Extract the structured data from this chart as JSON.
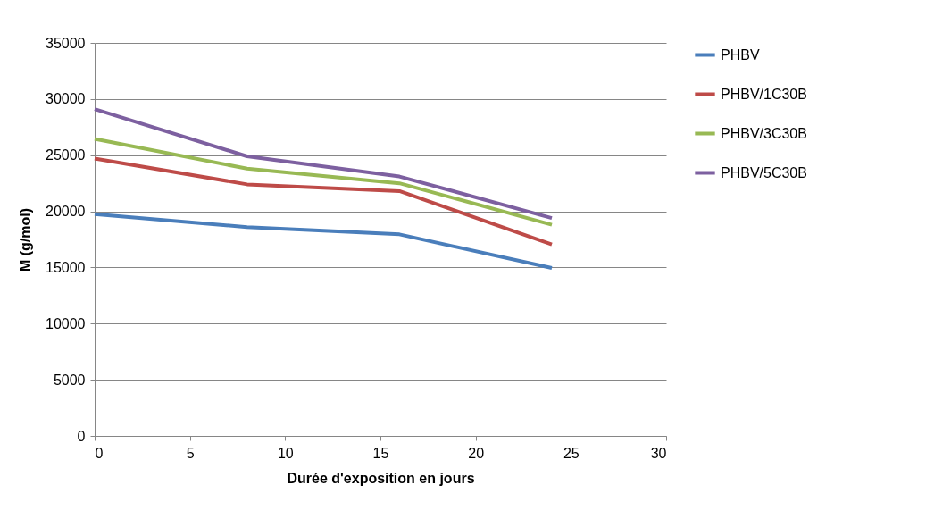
{
  "chart_data": {
    "type": "line",
    "xlabel": "Durée d'exposition en jours",
    "ylabel": "M (g/mol)",
    "x": [
      0,
      8,
      16,
      24
    ],
    "series": [
      {
        "name": "PHBV",
        "color": "#4a7ebb",
        "values": [
          19750,
          18600,
          17950,
          14950
        ]
      },
      {
        "name": "PHBV/1C30B",
        "color": "#be4b48",
        "values": [
          24700,
          22400,
          21800,
          17050
        ]
      },
      {
        "name": "PHBV/3C30B",
        "color": "#98b954",
        "values": [
          26450,
          23800,
          22500,
          18800
        ]
      },
      {
        "name": "PHBV/5C30B",
        "color": "#7d60a0",
        "values": [
          29100,
          24900,
          23100,
          19400
        ]
      }
    ],
    "xlim": [
      0,
      30
    ],
    "xticks": [
      0,
      5,
      10,
      15,
      20,
      25,
      30
    ],
    "ylim": [
      0,
      35000
    ],
    "yticks": [
      0,
      5000,
      10000,
      15000,
      20000,
      25000,
      30000,
      35000
    ],
    "grid": "y",
    "legend": "right",
    "marker": "none",
    "line_style": "solid"
  }
}
